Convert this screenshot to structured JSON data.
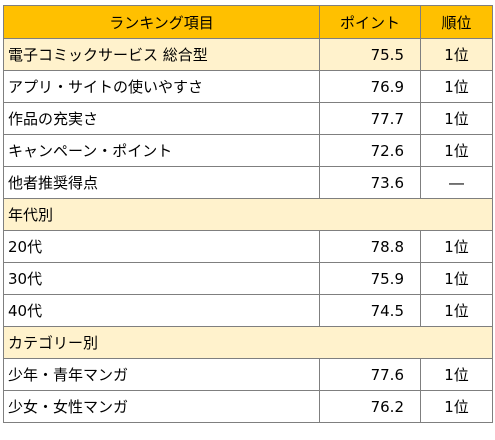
{
  "header": {
    "item": "ランキング項目",
    "points": "ポイント",
    "rank": "順位"
  },
  "overall": {
    "label": "電子コミックサービス 総合型",
    "points": "75.5",
    "rank": "1位"
  },
  "items": [
    {
      "label": "アプリ・サイトの使いやすさ",
      "points": "76.9",
      "rank": "1位"
    },
    {
      "label": "作品の充実さ",
      "points": "77.7",
      "rank": "1位"
    },
    {
      "label": "キャンペーン・ポイント",
      "points": "72.6",
      "rank": "1位"
    },
    {
      "label": "他者推奨得点",
      "points": "73.6",
      "rank": "―"
    }
  ],
  "age_section": {
    "title": "年代別",
    "rows": [
      {
        "label": "20代",
        "points": "78.8",
        "rank": "1位"
      },
      {
        "label": "30代",
        "points": "75.9",
        "rank": "1位"
      },
      {
        "label": "40代",
        "points": "74.5",
        "rank": "1位"
      }
    ]
  },
  "category_section": {
    "title": "カテゴリー別",
    "rows": [
      {
        "label": "少年・青年マンガ",
        "points": "77.6",
        "rank": "1位"
      },
      {
        "label": "少女・女性マンガ",
        "points": "76.2",
        "rank": "1位"
      }
    ]
  },
  "colors": {
    "header_bg": "#ffc000",
    "highlight_bg": "#fff2cc",
    "border": "#7f7f7f"
  }
}
